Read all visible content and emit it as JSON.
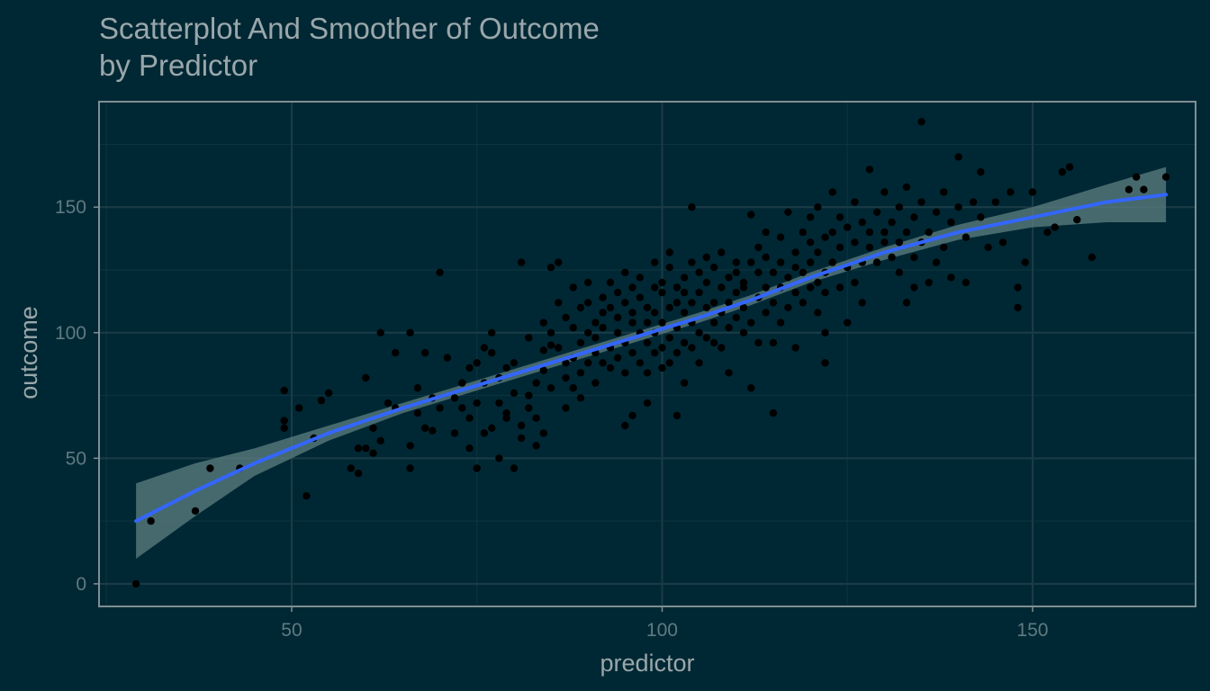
{
  "chart_data": {
    "type": "scatter",
    "title": "Scatterplot And Smoother of Outcome",
    "subtitle": "by Predictor",
    "xlabel": "predictor",
    "ylabel": "outcome",
    "xlim": [
      24,
      172
    ],
    "ylim": [
      -9,
      192
    ],
    "xticks": [
      50,
      100,
      150
    ],
    "yticks": [
      0,
      50,
      100,
      150
    ],
    "grid": true,
    "colors": {
      "background": "#002834",
      "panel_border": "#7f8e93",
      "grid_major": "#1b3c47",
      "grid_minor": "#0f3340",
      "points": "#000000",
      "smoother": "#3366ff",
      "ribbon": "#5d7f80"
    },
    "points": [
      [
        29,
        0
      ],
      [
        31,
        25
      ],
      [
        37,
        29
      ],
      [
        39,
        46
      ],
      [
        43,
        46
      ],
      [
        49,
        65
      ],
      [
        49,
        77
      ],
      [
        49,
        62
      ],
      [
        51,
        70
      ],
      [
        52,
        35
      ],
      [
        53,
        58
      ],
      [
        54,
        73
      ],
      [
        55,
        76
      ],
      [
        58,
        46
      ],
      [
        59,
        44
      ],
      [
        59,
        54
      ],
      [
        60,
        82
      ],
      [
        60,
        54
      ],
      [
        61,
        62
      ],
      [
        61,
        52
      ],
      [
        62,
        57
      ],
      [
        62,
        100
      ],
      [
        63,
        72
      ],
      [
        64,
        70
      ],
      [
        64,
        92
      ],
      [
        66,
        46
      ],
      [
        66,
        55
      ],
      [
        66,
        100
      ],
      [
        67,
        78
      ],
      [
        67,
        68
      ],
      [
        68,
        92
      ],
      [
        68,
        62
      ],
      [
        69,
        61
      ],
      [
        69,
        74
      ],
      [
        70,
        70
      ],
      [
        70,
        124
      ],
      [
        71,
        90
      ],
      [
        72,
        60
      ],
      [
        72,
        74
      ],
      [
        73,
        80
      ],
      [
        73,
        70
      ],
      [
        74,
        66
      ],
      [
        74,
        54
      ],
      [
        74,
        86
      ],
      [
        75,
        72
      ],
      [
        75,
        46
      ],
      [
        75,
        88
      ],
      [
        76,
        94
      ],
      [
        76,
        80
      ],
      [
        76,
        60
      ],
      [
        77,
        62
      ],
      [
        77,
        92
      ],
      [
        77,
        100
      ],
      [
        78,
        72
      ],
      [
        78,
        50
      ],
      [
        78,
        82
      ],
      [
        79,
        68
      ],
      [
        79,
        86
      ],
      [
        79,
        66
      ],
      [
        80,
        88
      ],
      [
        80,
        76
      ],
      [
        80,
        46
      ],
      [
        81,
        63
      ],
      [
        81,
        58
      ],
      [
        81,
        128
      ],
      [
        82,
        98
      ],
      [
        82,
        75
      ],
      [
        82,
        70
      ],
      [
        83,
        66
      ],
      [
        83,
        80
      ],
      [
        83,
        55
      ],
      [
        84,
        93
      ],
      [
        84,
        104
      ],
      [
        84,
        85
      ],
      [
        84,
        60
      ],
      [
        85,
        95
      ],
      [
        85,
        100
      ],
      [
        85,
        78
      ],
      [
        85,
        126
      ],
      [
        86,
        112
      ],
      [
        86,
        94
      ],
      [
        86,
        128
      ],
      [
        87,
        106
      ],
      [
        87,
        82
      ],
      [
        87,
        70
      ],
      [
        87,
        88
      ],
      [
        88,
        102
      ],
      [
        88,
        118
      ],
      [
        88,
        78
      ],
      [
        88,
        90
      ],
      [
        89,
        96
      ],
      [
        89,
        84
      ],
      [
        89,
        110
      ],
      [
        89,
        74
      ],
      [
        90,
        100
      ],
      [
        90,
        112
      ],
      [
        90,
        88
      ],
      [
        90,
        120
      ],
      [
        91,
        98
      ],
      [
        91,
        92
      ],
      [
        91,
        104
      ],
      [
        91,
        80
      ],
      [
        92,
        108
      ],
      [
        92,
        88
      ],
      [
        92,
        114
      ],
      [
        92,
        102
      ],
      [
        93,
        120
      ],
      [
        93,
        94
      ],
      [
        93,
        86
      ],
      [
        93,
        110
      ],
      [
        94,
        100
      ],
      [
        94,
        116
      ],
      [
        94,
        90
      ],
      [
        94,
        106
      ],
      [
        95,
        96
      ],
      [
        95,
        124
      ],
      [
        95,
        84
      ],
      [
        95,
        112
      ],
      [
        95,
        63
      ],
      [
        96,
        104
      ],
      [
        96,
        118
      ],
      [
        96,
        92
      ],
      [
        96,
        108
      ],
      [
        96,
        67
      ],
      [
        97,
        100
      ],
      [
        97,
        88
      ],
      [
        97,
        114
      ],
      [
        97,
        122
      ],
      [
        98,
        96
      ],
      [
        98,
        110
      ],
      [
        98,
        84
      ],
      [
        98,
        104
      ],
      [
        98,
        72
      ],
      [
        99,
        108
      ],
      [
        99,
        92
      ],
      [
        99,
        118
      ],
      [
        99,
        100
      ],
      [
        99,
        128
      ],
      [
        100,
        104
      ],
      [
        100,
        116
      ],
      [
        100,
        94
      ],
      [
        100,
        86
      ],
      [
        100,
        120
      ],
      [
        101,
        110
      ],
      [
        101,
        98
      ],
      [
        101,
        126
      ],
      [
        101,
        88
      ],
      [
        101,
        132
      ],
      [
        102,
        102
      ],
      [
        102,
        118
      ],
      [
        102,
        92
      ],
      [
        102,
        112
      ],
      [
        102,
        67
      ],
      [
        103,
        108
      ],
      [
        103,
        96
      ],
      [
        103,
        122
      ],
      [
        103,
        116
      ],
      [
        103,
        80
      ],
      [
        104,
        112
      ],
      [
        104,
        104
      ],
      [
        104,
        128
      ],
      [
        104,
        94
      ],
      [
        104,
        150
      ],
      [
        105,
        100
      ],
      [
        105,
        116
      ],
      [
        105,
        88
      ],
      [
        105,
        124
      ],
      [
        106,
        110
      ],
      [
        106,
        120
      ],
      [
        106,
        98
      ],
      [
        106,
        130
      ],
      [
        107,
        104
      ],
      [
        107,
        112
      ],
      [
        107,
        126
      ],
      [
        107,
        96
      ],
      [
        108,
        118
      ],
      [
        108,
        108
      ],
      [
        108,
        94
      ],
      [
        108,
        132
      ],
      [
        109,
        102
      ],
      [
        109,
        122
      ],
      [
        109,
        112
      ],
      [
        109,
        84
      ],
      [
        110,
        116
      ],
      [
        110,
        106
      ],
      [
        110,
        128
      ],
      [
        110,
        124
      ],
      [
        111,
        120
      ],
      [
        111,
        110
      ],
      [
        111,
        100
      ],
      [
        111,
        118
      ],
      [
        112,
        128
      ],
      [
        112,
        104
      ],
      [
        112,
        78
      ],
      [
        112,
        147
      ],
      [
        113,
        114
      ],
      [
        113,
        124
      ],
      [
        113,
        96
      ],
      [
        113,
        134
      ],
      [
        114,
        118
      ],
      [
        114,
        108
      ],
      [
        114,
        130
      ],
      [
        114,
        140
      ],
      [
        115,
        124
      ],
      [
        115,
        112
      ],
      [
        115,
        68
      ],
      [
        115,
        96
      ],
      [
        116,
        128
      ],
      [
        116,
        118
      ],
      [
        116,
        138
      ],
      [
        116,
        104
      ],
      [
        117,
        148
      ],
      [
        117,
        122
      ],
      [
        117,
        110
      ],
      [
        118,
        132
      ],
      [
        118,
        116
      ],
      [
        118,
        94
      ],
      [
        118,
        126
      ],
      [
        119,
        124
      ],
      [
        119,
        140
      ],
      [
        119,
        112
      ],
      [
        120,
        128
      ],
      [
        120,
        146
      ],
      [
        120,
        118
      ],
      [
        120,
        136
      ],
      [
        121,
        132
      ],
      [
        121,
        120
      ],
      [
        121,
        108
      ],
      [
        121,
        150
      ],
      [
        122,
        124
      ],
      [
        122,
        138
      ],
      [
        122,
        100
      ],
      [
        122,
        116
      ],
      [
        122,
        88
      ],
      [
        123,
        128
      ],
      [
        123,
        156
      ],
      [
        123,
        140
      ],
      [
        124,
        134
      ],
      [
        124,
        118
      ],
      [
        124,
        146
      ],
      [
        125,
        126
      ],
      [
        125,
        142
      ],
      [
        125,
        104
      ],
      [
        126,
        136
      ],
      [
        126,
        152
      ],
      [
        126,
        120
      ],
      [
        127,
        128
      ],
      [
        127,
        144
      ],
      [
        127,
        112
      ],
      [
        128,
        140
      ],
      [
        128,
        165
      ],
      [
        128,
        134
      ],
      [
        129,
        148
      ],
      [
        129,
        128
      ],
      [
        130,
        136
      ],
      [
        130,
        156
      ],
      [
        130,
        140
      ],
      [
        131,
        130
      ],
      [
        131,
        144
      ],
      [
        132,
        136
      ],
      [
        132,
        150
      ],
      [
        132,
        124
      ],
      [
        133,
        140
      ],
      [
        133,
        158
      ],
      [
        133,
        112
      ],
      [
        134,
        146
      ],
      [
        134,
        130
      ],
      [
        134,
        118
      ],
      [
        135,
        184
      ],
      [
        135,
        152
      ],
      [
        135,
        136
      ],
      [
        136,
        140
      ],
      [
        136,
        120
      ],
      [
        137,
        148
      ],
      [
        137,
        128
      ],
      [
        138,
        156
      ],
      [
        138,
        134
      ],
      [
        139,
        144
      ],
      [
        139,
        122
      ],
      [
        140,
        170
      ],
      [
        140,
        150
      ],
      [
        141,
        138
      ],
      [
        141,
        120
      ],
      [
        142,
        152
      ],
      [
        143,
        146
      ],
      [
        143,
        164
      ],
      [
        144,
        134
      ],
      [
        145,
        152
      ],
      [
        146,
        136
      ],
      [
        147,
        156
      ],
      [
        148,
        110
      ],
      [
        148,
        118
      ],
      [
        149,
        128
      ],
      [
        150,
        156
      ],
      [
        152,
        140
      ],
      [
        153,
        142
      ],
      [
        154,
        164
      ],
      [
        155,
        166
      ],
      [
        156,
        145
      ],
      [
        158,
        130
      ],
      [
        163,
        157
      ],
      [
        164,
        162
      ],
      [
        165,
        157
      ],
      [
        168,
        162
      ]
    ],
    "smoother": {
      "x": [
        29,
        37,
        45,
        55,
        65,
        75,
        85,
        95,
        105,
        112,
        120,
        130,
        140,
        150,
        160,
        168
      ],
      "y": [
        25,
        37,
        48,
        60,
        70,
        79,
        88,
        97,
        106,
        113,
        122,
        132,
        140,
        146,
        152,
        155
      ],
      "lower": [
        10,
        27,
        43,
        57,
        68,
        77,
        86,
        95,
        104,
        111,
        120,
        129,
        137,
        142,
        144,
        144
      ],
      "upper": [
        40,
        48,
        54,
        63,
        72,
        81,
        90,
        99,
        108,
        115,
        124,
        134,
        143,
        150,
        159,
        166
      ]
    }
  }
}
